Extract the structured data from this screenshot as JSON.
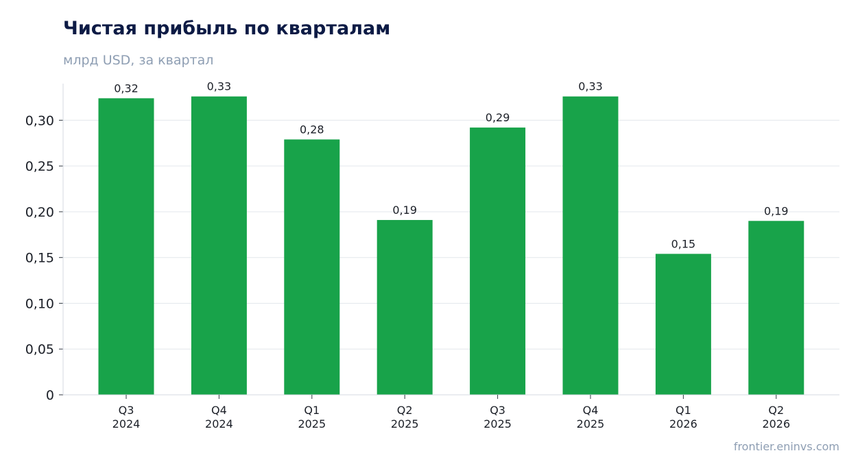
{
  "header": {
    "title": "Чистая прибыль по кварталам",
    "subtitle": "млрд USD, за квартал"
  },
  "footer": {
    "watermark": "frontier.eninvs.com"
  },
  "chart_data": {
    "type": "bar",
    "title": "Чистая прибыль по кварталам",
    "subtitle": "млрд USD, за квартал",
    "xlabel": "",
    "ylabel": "",
    "categories": [
      "Q3 2024",
      "Q4 2024",
      "Q1 2025",
      "Q2 2025",
      "Q3 2025",
      "Q4 2025",
      "Q1 2026",
      "Q2 2026"
    ],
    "category_lines": [
      [
        "Q3",
        "2024"
      ],
      [
        "Q4",
        "2024"
      ],
      [
        "Q1",
        "2025"
      ],
      [
        "Q2",
        "2025"
      ],
      [
        "Q3",
        "2025"
      ],
      [
        "Q4",
        "2025"
      ],
      [
        "Q1",
        "2026"
      ],
      [
        "Q2",
        "2026"
      ]
    ],
    "values": [
      0.324,
      0.326,
      0.279,
      0.191,
      0.292,
      0.326,
      0.154,
      0.19
    ],
    "value_labels": [
      "0,32",
      "0,33",
      "0,28",
      "0,19",
      "0,29",
      "0,33",
      "0,15",
      "0,19"
    ],
    "ylim": [
      0,
      0.34
    ],
    "yticks": [
      0,
      0.05,
      0.1,
      0.15,
      0.2,
      0.25,
      0.3
    ],
    "ytick_labels": [
      "0",
      "0,05",
      "0,10",
      "0,15",
      "0,20",
      "0,25",
      "0,30"
    ],
    "grid": true,
    "legend": "none",
    "bar_color": "#18a34a",
    "grid_color": "#e3e7ec"
  }
}
